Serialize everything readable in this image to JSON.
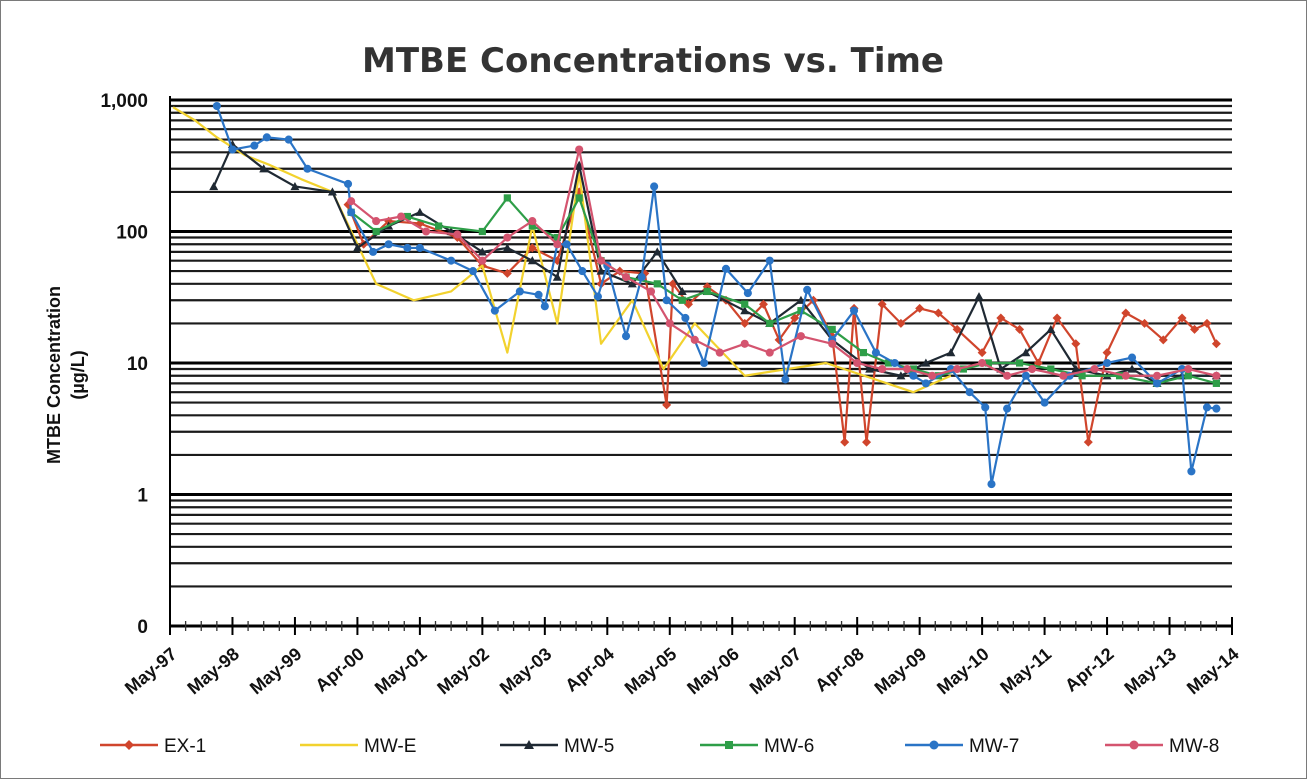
{
  "chart_data": {
    "type": "line",
    "title": "MTBE Concentrations vs. Time",
    "xlabel": "",
    "ylabel": "MTBE Concentration",
    "ylabel_unit": "(µg/L)",
    "y_scale": "log",
    "ylim": [
      0.1,
      1000
    ],
    "y_ticks": [
      {
        "value": 1000,
        "label": "1,000"
      },
      {
        "value": 100,
        "label": "100"
      },
      {
        "value": 10,
        "label": "10"
      },
      {
        "value": 1,
        "label": "1"
      },
      {
        "value": 0.1,
        "label": "0"
      }
    ],
    "x_ticks": [
      "May-97",
      "May-98",
      "May-99",
      "Apr-00",
      "May-01",
      "May-02",
      "May-03",
      "Apr-04",
      "May-05",
      "May-06",
      "May-07",
      "Apr-08",
      "May-09",
      "May-10",
      "May-11",
      "Apr-12",
      "May-13",
      "May-14"
    ],
    "grid": true,
    "legend_position": "bottom",
    "series": [
      {
        "name": "EX-1",
        "color": "#d0452c",
        "marker": "diamond",
        "points": [
          [
            2.85,
            160
          ],
          [
            3.1,
            80
          ],
          [
            3.5,
            120
          ],
          [
            4.0,
            115
          ],
          [
            4.6,
            90
          ],
          [
            5.0,
            55
          ],
          [
            5.4,
            48
          ],
          [
            5.8,
            75
          ],
          [
            6.2,
            60
          ],
          [
            6.55,
            200
          ],
          [
            6.9,
            40
          ],
          [
            7.2,
            50
          ],
          [
            7.6,
            48
          ],
          [
            7.95,
            4.8
          ],
          [
            8.05,
            40
          ],
          [
            8.3,
            28
          ],
          [
            8.6,
            38
          ],
          [
            8.9,
            30
          ],
          [
            9.2,
            20
          ],
          [
            9.5,
            28
          ],
          [
            9.75,
            15
          ],
          [
            10.0,
            22
          ],
          [
            10.3,
            30
          ],
          [
            10.6,
            16
          ],
          [
            10.8,
            2.5
          ],
          [
            10.95,
            26
          ],
          [
            11.15,
            2.5
          ],
          [
            11.4,
            28
          ],
          [
            11.7,
            20
          ],
          [
            12.0,
            26
          ],
          [
            12.3,
            24
          ],
          [
            12.6,
            18
          ],
          [
            13.0,
            12
          ],
          [
            13.3,
            22
          ],
          [
            13.6,
            18
          ],
          [
            13.9,
            10
          ],
          [
            14.2,
            22
          ],
          [
            14.5,
            14
          ],
          [
            14.7,
            2.5
          ],
          [
            15.0,
            12
          ],
          [
            15.3,
            24
          ],
          [
            15.6,
            20
          ],
          [
            15.9,
            15
          ],
          [
            16.2,
            22
          ],
          [
            16.4,
            18
          ],
          [
            16.6,
            20
          ],
          [
            16.75,
            14
          ]
        ]
      },
      {
        "name": "MW-E",
        "color": "#f2d22e",
        "marker": "none",
        "points": [
          [
            0.05,
            880
          ],
          [
            0.4,
            700
          ],
          [
            0.75,
            520
          ],
          [
            1.2,
            380
          ],
          [
            1.6,
            320
          ],
          [
            2.1,
            250
          ],
          [
            2.6,
            200
          ],
          [
            3.0,
            80
          ],
          [
            3.3,
            40
          ],
          [
            3.9,
            30
          ],
          [
            4.5,
            35
          ],
          [
            5.0,
            55
          ],
          [
            5.4,
            12
          ],
          [
            5.8,
            110
          ],
          [
            6.2,
            20
          ],
          [
            6.55,
            280
          ],
          [
            6.9,
            14
          ],
          [
            7.4,
            30
          ],
          [
            7.9,
            9
          ],
          [
            8.4,
            20
          ],
          [
            9.2,
            8
          ],
          [
            10.5,
            10
          ],
          [
            11.9,
            6
          ],
          [
            12.5,
            8
          ]
        ]
      },
      {
        "name": "MW-5",
        "color": "#1f2933",
        "marker": "triangle",
        "points": [
          [
            0.7,
            220
          ],
          [
            1.0,
            460
          ],
          [
            1.5,
            300
          ],
          [
            2.0,
            220
          ],
          [
            2.6,
            200
          ],
          [
            3.0,
            75
          ],
          [
            3.5,
            110
          ],
          [
            4.0,
            140
          ],
          [
            4.5,
            100
          ],
          [
            5.0,
            70
          ],
          [
            5.4,
            75
          ],
          [
            5.8,
            60
          ],
          [
            6.2,
            45
          ],
          [
            6.55,
            320
          ],
          [
            6.9,
            50
          ],
          [
            7.4,
            40
          ],
          [
            7.8,
            70
          ],
          [
            8.2,
            35
          ],
          [
            8.6,
            35
          ],
          [
            9.2,
            25
          ],
          [
            9.6,
            20
          ],
          [
            10.1,
            30
          ],
          [
            10.6,
            15
          ],
          [
            11.2,
            9
          ],
          [
            11.7,
            8
          ],
          [
            12.1,
            10
          ],
          [
            12.5,
            12
          ],
          [
            12.95,
            32
          ],
          [
            13.3,
            9
          ],
          [
            13.7,
            12
          ],
          [
            14.1,
            18
          ],
          [
            14.5,
            9
          ],
          [
            15.0,
            8
          ],
          [
            15.4,
            9
          ],
          [
            15.8,
            7
          ],
          [
            16.2,
            8
          ],
          [
            16.75,
            8
          ]
        ]
      },
      {
        "name": "MW-6",
        "color": "#2e9e48",
        "marker": "square",
        "points": [
          [
            2.9,
            140
          ],
          [
            3.3,
            100
          ],
          [
            3.8,
            130
          ],
          [
            4.3,
            110
          ],
          [
            5.0,
            100
          ],
          [
            5.4,
            180
          ],
          [
            5.8,
            110
          ],
          [
            6.2,
            90
          ],
          [
            6.55,
            180
          ],
          [
            6.9,
            60
          ],
          [
            7.3,
            45
          ],
          [
            7.8,
            40
          ],
          [
            8.2,
            30
          ],
          [
            8.6,
            35
          ],
          [
            9.2,
            28
          ],
          [
            9.6,
            20
          ],
          [
            10.1,
            25
          ],
          [
            10.6,
            18
          ],
          [
            11.1,
            12
          ],
          [
            11.5,
            10
          ],
          [
            11.9,
            9
          ],
          [
            12.3,
            8
          ],
          [
            12.7,
            9
          ],
          [
            13.1,
            10
          ],
          [
            13.6,
            10
          ],
          [
            14.1,
            9
          ],
          [
            14.6,
            8
          ],
          [
            15.2,
            8
          ],
          [
            15.8,
            7
          ],
          [
            16.3,
            8
          ],
          [
            16.75,
            7
          ]
        ]
      },
      {
        "name": "MW-7",
        "color": "#2a74c6",
        "marker": "circle",
        "points": [
          [
            0.75,
            900
          ],
          [
            1.0,
            420
          ],
          [
            1.35,
            450
          ],
          [
            1.55,
            520
          ],
          [
            1.9,
            500
          ],
          [
            2.2,
            300
          ],
          [
            2.85,
            230
          ],
          [
            2.9,
            140
          ],
          [
            3.25,
            70
          ],
          [
            3.5,
            80
          ],
          [
            3.8,
            75
          ],
          [
            4.0,
            75
          ],
          [
            4.5,
            60
          ],
          [
            4.85,
            50
          ],
          [
            5.2,
            25
          ],
          [
            5.6,
            35
          ],
          [
            5.9,
            33
          ],
          [
            6.0,
            27
          ],
          [
            6.2,
            80
          ],
          [
            6.35,
            80
          ],
          [
            6.6,
            50
          ],
          [
            6.85,
            32
          ],
          [
            7.0,
            55
          ],
          [
            7.3,
            16
          ],
          [
            7.55,
            45
          ],
          [
            7.75,
            220
          ],
          [
            7.95,
            30
          ],
          [
            8.25,
            22
          ],
          [
            8.55,
            10
          ],
          [
            8.9,
            52
          ],
          [
            9.25,
            34
          ],
          [
            9.6,
            60
          ],
          [
            9.85,
            7.5
          ],
          [
            10.2,
            36
          ],
          [
            10.6,
            15
          ],
          [
            10.95,
            25
          ],
          [
            11.3,
            12
          ],
          [
            11.6,
            10
          ],
          [
            11.9,
            8
          ],
          [
            12.1,
            7
          ],
          [
            12.5,
            9
          ],
          [
            12.8,
            6
          ],
          [
            13.05,
            4.6
          ],
          [
            13.15,
            1.2
          ],
          [
            13.4,
            4.5
          ],
          [
            13.7,
            8
          ],
          [
            14.0,
            5
          ],
          [
            14.4,
            8
          ],
          [
            15.0,
            10
          ],
          [
            15.4,
            11
          ],
          [
            15.8,
            7
          ],
          [
            16.2,
            9
          ],
          [
            16.35,
            1.5
          ],
          [
            16.6,
            4.6
          ],
          [
            16.75,
            4.5
          ]
        ]
      },
      {
        "name": "MW-8",
        "color": "#d4546f",
        "marker": "circle",
        "points": [
          [
            2.9,
            170
          ],
          [
            3.3,
            120
          ],
          [
            3.7,
            130
          ],
          [
            4.1,
            100
          ],
          [
            4.6,
            95
          ],
          [
            5.0,
            60
          ],
          [
            5.4,
            90
          ],
          [
            5.8,
            120
          ],
          [
            6.2,
            80
          ],
          [
            6.55,
            420
          ],
          [
            6.9,
            60
          ],
          [
            7.3,
            45
          ],
          [
            7.7,
            35
          ],
          [
            8.0,
            20
          ],
          [
            8.4,
            15
          ],
          [
            8.8,
            12
          ],
          [
            9.2,
            14
          ],
          [
            9.6,
            12
          ],
          [
            10.1,
            16
          ],
          [
            10.6,
            14
          ],
          [
            11.0,
            10
          ],
          [
            11.4,
            9
          ],
          [
            11.8,
            9
          ],
          [
            12.2,
            8
          ],
          [
            12.6,
            9
          ],
          [
            13.0,
            10
          ],
          [
            13.4,
            8
          ],
          [
            13.8,
            9
          ],
          [
            14.3,
            8
          ],
          [
            14.8,
            9
          ],
          [
            15.3,
            8
          ],
          [
            15.8,
            8
          ],
          [
            16.3,
            9
          ],
          [
            16.75,
            8
          ]
        ]
      }
    ]
  }
}
